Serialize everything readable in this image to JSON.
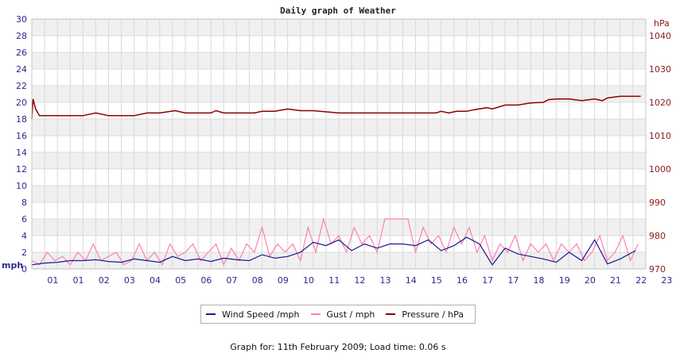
{
  "chart_data": {
    "type": "line",
    "title": "Daily graph of Weather",
    "left_axis": {
      "label": "mph",
      "ylim": [
        0,
        30
      ],
      "ticks": [
        0,
        2,
        4,
        6,
        8,
        10,
        12,
        14,
        16,
        18,
        20,
        22,
        24,
        26,
        28,
        30
      ]
    },
    "right_axis": {
      "label": "hPa",
      "ylim": [
        970,
        1045
      ],
      "ticks": [
        970,
        980,
        990,
        1000,
        1010,
        1020,
        1030,
        1040
      ]
    },
    "x_tick_labels": [
      "01",
      "01",
      "02",
      "03",
      "04",
      "05",
      "06",
      "07",
      "08",
      "09",
      "10",
      "11",
      "12",
      "13",
      "14",
      "15",
      "16",
      "17",
      "17",
      "18",
      "19",
      "20",
      "21",
      "22",
      "23"
    ],
    "x_range": [
      0,
      24
    ],
    "grid": true,
    "legend_placement": "bottom",
    "series": [
      {
        "name": "Wind Speed /mph",
        "axis": "left",
        "color": "#1a1a8c",
        "x": [
          0,
          0.5,
          1,
          1.5,
          2,
          2.5,
          3,
          3.5,
          4,
          4.5,
          5,
          5.5,
          6,
          6.5,
          7,
          7.5,
          8,
          8.5,
          9,
          9.5,
          10,
          10.5,
          11,
          11.5,
          12,
          12.5,
          13,
          13.5,
          14,
          14.5,
          15,
          15.5,
          16,
          16.5,
          17,
          17.5,
          18,
          18.5,
          19,
          19.5,
          20,
          20.5,
          21,
          21.5,
          22,
          22.5,
          23,
          23.6
        ],
        "values": [
          0.5,
          0.7,
          0.8,
          1.0,
          1.0,
          1.1,
          0.9,
          0.8,
          1.2,
          1.0,
          0.8,
          1.5,
          1.0,
          1.2,
          0.9,
          1.3,
          1.1,
          1.0,
          1.7,
          1.3,
          1.5,
          2.0,
          3.2,
          2.8,
          3.5,
          2.2,
          3.0,
          2.5,
          3.0,
          3.0,
          2.8,
          3.5,
          2.2,
          2.8,
          3.8,
          3.0,
          0.5,
          2.5,
          1.8,
          1.5,
          1.2,
          0.8,
          2.0,
          1.0,
          3.5,
          0.6,
          1.2,
          2.2
        ]
      },
      {
        "name": "Gust / mph",
        "axis": "left",
        "color": "#ff7eb3",
        "x": [
          0,
          0.3,
          0.6,
          0.9,
          1.2,
          1.5,
          1.8,
          2.1,
          2.4,
          2.7,
          3.0,
          3.3,
          3.6,
          3.9,
          4.2,
          4.5,
          4.8,
          5.1,
          5.4,
          5.7,
          6.0,
          6.3,
          6.6,
          6.9,
          7.2,
          7.5,
          7.8,
          8.1,
          8.4,
          8.7,
          9.0,
          9.3,
          9.6,
          9.9,
          10.2,
          10.5,
          10.8,
          11.1,
          11.4,
          11.7,
          12.0,
          12.3,
          12.6,
          12.9,
          13.2,
          13.5,
          13.8,
          14.1,
          14.4,
          14.7,
          15.0,
          15.3,
          15.6,
          15.9,
          16.2,
          16.5,
          16.8,
          17.1,
          17.4,
          17.7,
          18.0,
          18.3,
          18.6,
          18.9,
          19.2,
          19.5,
          19.8,
          20.1,
          20.4,
          20.7,
          21.0,
          21.3,
          21.6,
          21.9,
          22.2,
          22.5,
          22.8,
          23.1,
          23.4,
          23.7
        ],
        "values": [
          1,
          0.5,
          2,
          1,
          1.5,
          0.5,
          2,
          1,
          3,
          1,
          1.5,
          2,
          0.5,
          1,
          3,
          1,
          2,
          0.5,
          3,
          1.5,
          2,
          3,
          1,
          2,
          3,
          0.5,
          2.5,
          1,
          3,
          2,
          5,
          1.5,
          3,
          2,
          3,
          1,
          5,
          2,
          6,
          3,
          4,
          2,
          5,
          3,
          4,
          2,
          6,
          6,
          6,
          6,
          2,
          5,
          3,
          4,
          2,
          5,
          3,
          5,
          2,
          4,
          1,
          3,
          2,
          4,
          1,
          3,
          2,
          3,
          1,
          3,
          2,
          3,
          1,
          2,
          4,
          1,
          2,
          4,
          1,
          3
        ]
      },
      {
        "name": "Pressure / hPa",
        "axis": "right",
        "color": "#8b0000",
        "x": [
          0,
          0.05,
          0.15,
          0.3,
          0.5,
          1.0,
          2.0,
          2.5,
          3.0,
          4.0,
          4.5,
          5.0,
          5.6,
          6.0,
          6.5,
          7.0,
          7.2,
          7.5,
          8.0,
          8.7,
          9.0,
          9.5,
          10.0,
          10.5,
          11.0,
          12.0,
          13.0,
          14.0,
          15.0,
          15.8,
          16.0,
          16.3,
          16.6,
          17.0,
          17.3,
          17.8,
          18.0,
          18.5,
          19.0,
          19.5,
          20.0,
          20.2,
          20.5,
          21.0,
          21.5,
          22.0,
          22.3,
          22.5,
          23.0,
          23.8
        ],
        "values": [
          1015,
          1021,
          1018,
          1016,
          1016,
          1016,
          1016,
          1016.8,
          1016,
          1016,
          1016.8,
          1016.8,
          1017.5,
          1016.8,
          1016.8,
          1016.8,
          1017.5,
          1016.8,
          1016.8,
          1016.8,
          1017.3,
          1017.3,
          1018,
          1017.5,
          1017.5,
          1016.8,
          1016.8,
          1016.8,
          1016.8,
          1016.8,
          1017.3,
          1016.8,
          1017.3,
          1017.3,
          1017.8,
          1018.4,
          1018,
          1019.2,
          1019.2,
          1019.8,
          1020,
          1020.8,
          1021,
          1021,
          1020.5,
          1021,
          1020.5,
          1021.3,
          1021.8,
          1021.8
        ]
      }
    ],
    "footer": "Graph for: 11th February 2009; Load time: 0.06 s"
  }
}
